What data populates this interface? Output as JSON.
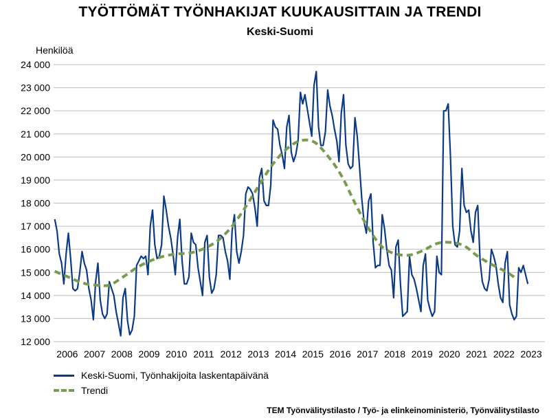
{
  "title": "TYÖTTÖMÄT TYÖNHAKIJAT KUUKAUSITTAIN JA TRENDI",
  "subtitle": "Keski-Suomi",
  "source": "TEM Työnvälitystilasto / Työ- ja elinkeinoministeriö, Työnvälitystilasto",
  "chart_data": {
    "type": "line",
    "title": "TYÖTTÖMÄT TYÖNHAKIJAT KUUKAUSITTAIN JA TRENDI",
    "subtitle": "Keski-Suomi",
    "ylabel": "Henkilöä",
    "xlabel": "",
    "ylim": [
      12000,
      24000
    ],
    "yticks": [
      12000,
      13000,
      14000,
      15000,
      16000,
      17000,
      18000,
      19000,
      20000,
      21000,
      22000,
      23000,
      24000
    ],
    "ytick_labels": [
      "12 000",
      "13 000",
      "14 000",
      "15 000",
      "16 000",
      "17 000",
      "18 000",
      "19 000",
      "20 000",
      "21 000",
      "22 000",
      "23 000",
      "24 000"
    ],
    "xticks": [
      "2006",
      "2007",
      "2008",
      "2009",
      "2010",
      "2011",
      "2012",
      "2013",
      "2014",
      "2015",
      "2016",
      "2017",
      "2018",
      "2019",
      "2020",
      "2021",
      "2022",
      "2023"
    ],
    "x_start": "2006-01",
    "grid": "horizontal",
    "legend_position": "bottom-left",
    "series": [
      {
        "name": "Keski-Suomi, Työnhakijoita laskentapäivänä",
        "color": "#0b3b84",
        "style": "solid",
        "values": [
          17300,
          16800,
          15800,
          15400,
          14500,
          15800,
          16700,
          15600,
          14300,
          14200,
          14300,
          15000,
          15900,
          15400,
          15100,
          14300,
          13800,
          12950,
          14600,
          15400,
          13800,
          13200,
          13000,
          13200,
          14600,
          14300,
          14000,
          13300,
          12800,
          12250,
          13900,
          14300,
          12900,
          12300,
          12500,
          13100,
          15300,
          15500,
          15700,
          15600,
          15700,
          14900,
          17000,
          17700,
          16200,
          15600,
          15700,
          16200,
          18300,
          17700,
          17000,
          16500,
          15800,
          14900,
          16500,
          17300,
          15500,
          14500,
          14500,
          14800,
          16700,
          16300,
          16200,
          15200,
          14600,
          14000,
          16300,
          16600,
          14800,
          14100,
          14300,
          14900,
          16600,
          16600,
          16500,
          15900,
          15500,
          14700,
          16800,
          17500,
          15900,
          15400,
          15900,
          16600,
          18400,
          18700,
          18600,
          18400,
          17800,
          17000,
          19100,
          19500,
          18100,
          17900,
          17900,
          18800,
          21600,
          21300,
          21200,
          20500,
          20100,
          19500,
          21300,
          21800,
          20200,
          19800,
          20100,
          20700,
          22800,
          22300,
          22700,
          22100,
          21500,
          20900,
          23100,
          23700,
          21300,
          20500,
          20500,
          21100,
          22900,
          22200,
          21800,
          21200,
          20700,
          19800,
          21900,
          22700,
          20500,
          19700,
          19500,
          19600,
          21700,
          20900,
          19600,
          18200,
          17200,
          16700,
          18100,
          18400,
          16300,
          15200,
          15300,
          15300,
          17500,
          16900,
          16000,
          15300,
          15100,
          13900,
          16100,
          16400,
          14500,
          13100,
          13200,
          13300,
          15700,
          14900,
          14700,
          14300,
          13800,
          13300,
          15300,
          15800,
          13800,
          13400,
          13100,
          13300,
          15700,
          15000,
          14900,
          22000,
          22000,
          22300,
          20000,
          17000,
          16200,
          16100,
          16800,
          19500,
          17900,
          17600,
          17700,
          16800,
          16300,
          17600,
          17900,
          15500,
          14600,
          14300,
          14200,
          14700,
          16000,
          15700,
          15300,
          14500,
          13900,
          13700,
          15400,
          15900,
          13600,
          13200,
          12950,
          13100,
          15200,
          15000,
          15300,
          14900,
          14500
        ]
      },
      {
        "name": "Trendi",
        "color": "#7a9a51",
        "style": "dashed",
        "points": [
          [
            "2006-01",
            15050
          ],
          [
            "2006-07",
            14800
          ],
          [
            "2007-01",
            14550
          ],
          [
            "2007-07",
            14450
          ],
          [
            "2008-01",
            14450
          ],
          [
            "2008-07",
            14800
          ],
          [
            "2009-01",
            15200
          ],
          [
            "2009-07",
            15500
          ],
          [
            "2010-01",
            15700
          ],
          [
            "2010-07",
            15800
          ],
          [
            "2011-01",
            15850
          ],
          [
            "2011-07",
            16050
          ],
          [
            "2012-01",
            16400
          ],
          [
            "2012-07",
            17000
          ],
          [
            "2013-01",
            17850
          ],
          [
            "2013-07",
            18800
          ],
          [
            "2014-01",
            19700
          ],
          [
            "2014-07",
            20350
          ],
          [
            "2015-01",
            20700
          ],
          [
            "2015-07",
            20650
          ],
          [
            "2016-01",
            20050
          ],
          [
            "2016-07",
            19200
          ],
          [
            "2017-01",
            18000
          ],
          [
            "2017-07",
            16900
          ],
          [
            "2018-01",
            16100
          ],
          [
            "2018-07",
            15800
          ],
          [
            "2019-01",
            15750
          ],
          [
            "2019-07",
            15950
          ],
          [
            "2020-01",
            16250
          ],
          [
            "2020-07",
            16300
          ],
          [
            "2021-01",
            16150
          ],
          [
            "2021-07",
            15700
          ],
          [
            "2022-01",
            15350
          ],
          [
            "2022-07",
            15050
          ],
          [
            "2022-11",
            14800
          ]
        ]
      }
    ]
  }
}
